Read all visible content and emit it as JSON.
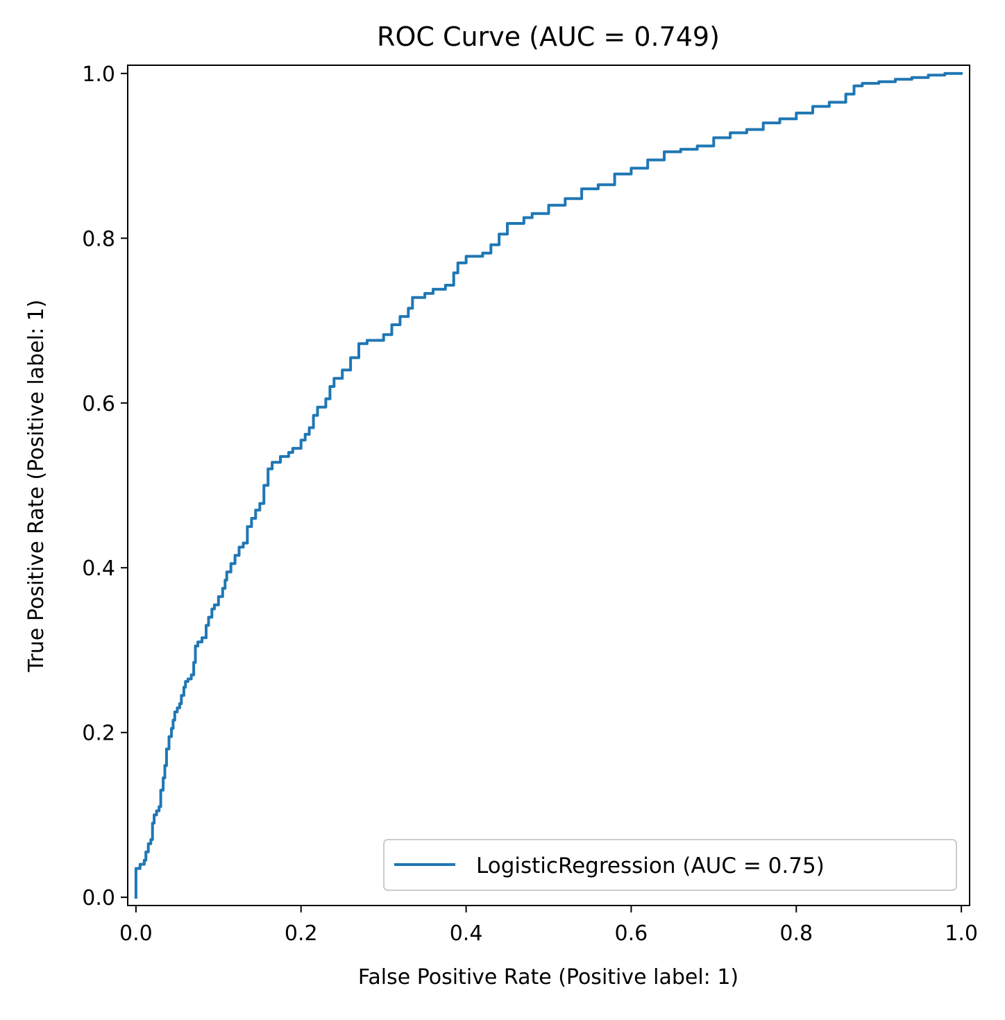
{
  "chart_data": {
    "type": "line",
    "title": "ROC Curve (AUC = 0.749)",
    "xlabel": "False Positive Rate (Positive label: 1)",
    "ylabel": "True Positive Rate (Positive label: 1)",
    "xlim": [
      -0.01,
      1.01
    ],
    "ylim": [
      -0.01,
      1.01
    ],
    "xticks": [
      0.0,
      0.2,
      0.4,
      0.6,
      0.8,
      1.0
    ],
    "yticks": [
      0.0,
      0.2,
      0.4,
      0.6,
      0.8,
      1.0
    ],
    "xtick_labels": [
      "0.0",
      "0.2",
      "0.4",
      "0.6",
      "0.8",
      "1.0"
    ],
    "ytick_labels": [
      "0.0",
      "0.2",
      "0.4",
      "0.6",
      "0.8",
      "1.0"
    ],
    "grid": false,
    "legend_position": "lower-right",
    "series": [
      {
        "name": "LogisticRegression (AUC = 0.75)",
        "color": "#1f77b4",
        "points": [
          [
            0.0,
            0.0
          ],
          [
            0.0,
            0.035
          ],
          [
            0.005,
            0.04
          ],
          [
            0.01,
            0.045
          ],
          [
            0.012,
            0.055
          ],
          [
            0.015,
            0.065
          ],
          [
            0.018,
            0.07
          ],
          [
            0.02,
            0.09
          ],
          [
            0.022,
            0.1
          ],
          [
            0.025,
            0.105
          ],
          [
            0.028,
            0.11
          ],
          [
            0.03,
            0.13
          ],
          [
            0.033,
            0.145
          ],
          [
            0.035,
            0.16
          ],
          [
            0.037,
            0.18
          ],
          [
            0.04,
            0.195
          ],
          [
            0.043,
            0.205
          ],
          [
            0.045,
            0.215
          ],
          [
            0.047,
            0.225
          ],
          [
            0.05,
            0.23
          ],
          [
            0.053,
            0.235
          ],
          [
            0.055,
            0.245
          ],
          [
            0.058,
            0.255
          ],
          [
            0.06,
            0.262
          ],
          [
            0.063,
            0.265
          ],
          [
            0.067,
            0.27
          ],
          [
            0.07,
            0.285
          ],
          [
            0.072,
            0.305
          ],
          [
            0.075,
            0.31
          ],
          [
            0.08,
            0.315
          ],
          [
            0.085,
            0.33
          ],
          [
            0.088,
            0.34
          ],
          [
            0.092,
            0.35
          ],
          [
            0.095,
            0.355
          ],
          [
            0.1,
            0.365
          ],
          [
            0.105,
            0.375
          ],
          [
            0.108,
            0.385
          ],
          [
            0.11,
            0.395
          ],
          [
            0.115,
            0.405
          ],
          [
            0.12,
            0.415
          ],
          [
            0.125,
            0.425
          ],
          [
            0.13,
            0.43
          ],
          [
            0.135,
            0.45
          ],
          [
            0.14,
            0.46
          ],
          [
            0.145,
            0.47
          ],
          [
            0.15,
            0.478
          ],
          [
            0.155,
            0.5
          ],
          [
            0.16,
            0.52
          ],
          [
            0.165,
            0.528
          ],
          [
            0.175,
            0.535
          ],
          [
            0.185,
            0.54
          ],
          [
            0.19,
            0.545
          ],
          [
            0.2,
            0.555
          ],
          [
            0.205,
            0.562
          ],
          [
            0.21,
            0.57
          ],
          [
            0.215,
            0.585
          ],
          [
            0.22,
            0.595
          ],
          [
            0.23,
            0.605
          ],
          [
            0.235,
            0.62
          ],
          [
            0.24,
            0.63
          ],
          [
            0.25,
            0.64
          ],
          [
            0.26,
            0.655
          ],
          [
            0.27,
            0.672
          ],
          [
            0.28,
            0.676
          ],
          [
            0.3,
            0.683
          ],
          [
            0.31,
            0.695
          ],
          [
            0.32,
            0.705
          ],
          [
            0.33,
            0.715
          ],
          [
            0.335,
            0.728
          ],
          [
            0.35,
            0.733
          ],
          [
            0.36,
            0.738
          ],
          [
            0.375,
            0.743
          ],
          [
            0.385,
            0.758
          ],
          [
            0.39,
            0.77
          ],
          [
            0.4,
            0.778
          ],
          [
            0.42,
            0.782
          ],
          [
            0.43,
            0.792
          ],
          [
            0.44,
            0.805
          ],
          [
            0.45,
            0.818
          ],
          [
            0.47,
            0.825
          ],
          [
            0.48,
            0.83
          ],
          [
            0.5,
            0.84
          ],
          [
            0.52,
            0.848
          ],
          [
            0.54,
            0.86
          ],
          [
            0.56,
            0.865
          ],
          [
            0.58,
            0.878
          ],
          [
            0.6,
            0.885
          ],
          [
            0.62,
            0.895
          ],
          [
            0.64,
            0.905
          ],
          [
            0.66,
            0.908
          ],
          [
            0.68,
            0.912
          ],
          [
            0.7,
            0.922
          ],
          [
            0.72,
            0.928
          ],
          [
            0.74,
            0.932
          ],
          [
            0.76,
            0.94
          ],
          [
            0.78,
            0.945
          ],
          [
            0.8,
            0.952
          ],
          [
            0.82,
            0.96
          ],
          [
            0.84,
            0.965
          ],
          [
            0.86,
            0.975
          ],
          [
            0.87,
            0.985
          ],
          [
            0.88,
            0.988
          ],
          [
            0.9,
            0.99
          ],
          [
            0.92,
            0.993
          ],
          [
            0.94,
            0.995
          ],
          [
            0.96,
            0.998
          ],
          [
            0.98,
            1.0
          ],
          [
            1.0,
            1.0
          ]
        ]
      }
    ]
  }
}
